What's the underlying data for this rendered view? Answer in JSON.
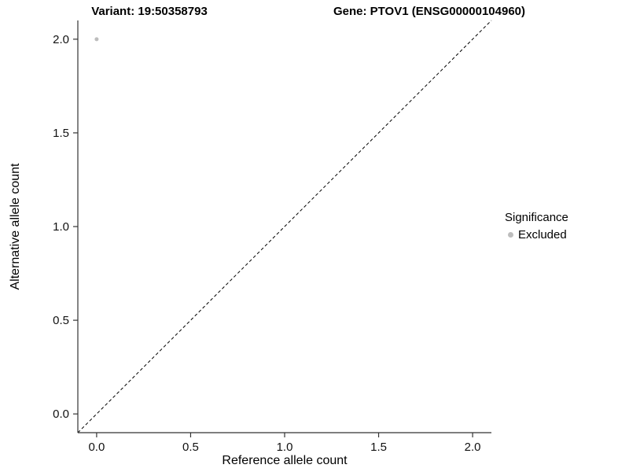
{
  "chart_data": {
    "type": "scatter",
    "title_left": "Variant: 19:50358793",
    "title_right": "Gene: PTOV1 (ENSG00000104960)",
    "xlabel": "Reference allele count",
    "ylabel": "Alternative allele count",
    "xlim": [
      -0.1,
      2.1
    ],
    "ylim": [
      -0.1,
      2.1
    ],
    "xtick_values": [
      0,
      0.5,
      1,
      1.5,
      2
    ],
    "xtick_labels": [
      "0.0",
      "0.5",
      "1.0",
      "1.5",
      "2.0"
    ],
    "ytick_values": [
      0,
      0.5,
      1,
      1.5,
      2
    ],
    "ytick_labels": [
      "0.0",
      "0.5",
      "1.0",
      "1.5",
      "2.0"
    ],
    "grid": false,
    "background_color": "#ffffff",
    "axis_color": "#333333",
    "identity_line": {
      "slope": 1,
      "intercept": 0,
      "style": "dashed",
      "color": "#000000"
    },
    "points": [
      {
        "x": 0.0,
        "y": 2.0,
        "series": "Excluded",
        "color": "#bdbdbd"
      }
    ],
    "legend": {
      "title": "Significance",
      "position": "right",
      "entries": [
        {
          "label": "Excluded",
          "color": "#bdbdbd"
        }
      ]
    }
  }
}
